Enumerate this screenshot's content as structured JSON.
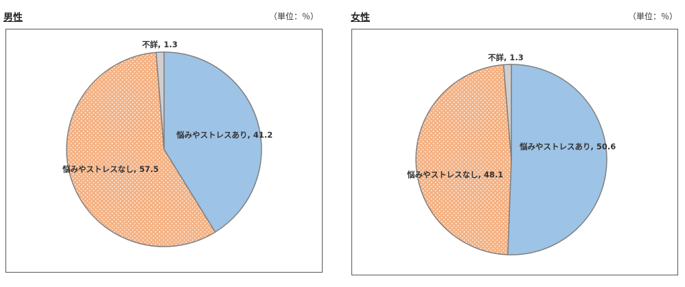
{
  "colors": {
    "ari": "#9dc3e6",
    "nashi": "#f4b183",
    "fusho": "#d0cece",
    "stroke": "#7f7f7f",
    "dot": "#ffffff"
  },
  "chart_data": [
    {
      "type": "pie",
      "title": "男性",
      "unit_note": "（単位：％）",
      "slices": [
        {
          "label": "悩みやストレスあり",
          "value": 41.2,
          "text": "悩みやストレスあり, 41.2"
        },
        {
          "label": "悩みやストレスなし",
          "value": 57.5,
          "text": "悩みやストレスなし, 57.5"
        },
        {
          "label": "不詳",
          "value": 1.3,
          "text": "不詳, 1.3"
        }
      ]
    },
    {
      "type": "pie",
      "title": "女性",
      "unit_note": "（単位：％）",
      "slices": [
        {
          "label": "悩みやストレスあり",
          "value": 50.6,
          "text": "悩みやストレスあり, 50.6"
        },
        {
          "label": "悩みやストレスなし",
          "value": 48.1,
          "text": "悩みやストレスなし, 48.1"
        },
        {
          "label": "不詳",
          "value": 1.3,
          "text": "不詳, 1.3"
        }
      ]
    }
  ]
}
